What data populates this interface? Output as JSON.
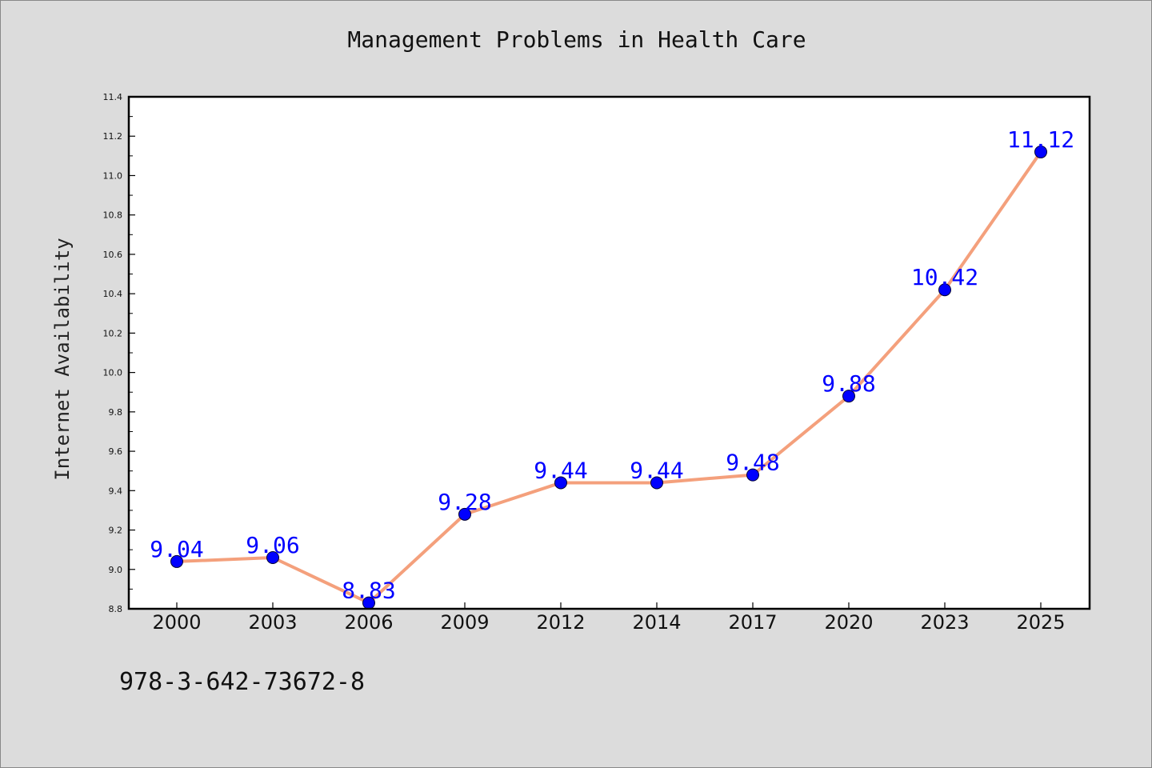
{
  "chart_data": {
    "type": "line",
    "title": "Management Problems in Health Care",
    "xlabel": "",
    "ylabel": "Internet Availability",
    "categories": [
      "2000",
      "2003",
      "2006",
      "2009",
      "2012",
      "2014",
      "2017",
      "2020",
      "2023",
      "2025"
    ],
    "series": [
      {
        "values": [
          9.04,
          9.06,
          8.83,
          9.28,
          9.44,
          9.44,
          9.48,
          9.88,
          10.42,
          11.12
        ],
        "labels": [
          "9.04",
          "9.06",
          "8.83",
          "9.28",
          "9.44",
          "9.44",
          "9.48",
          "9.88",
          "10.42",
          "11.12"
        ]
      }
    ],
    "ylim": [
      8.8,
      11.4
    ],
    "yticks": [
      "8.8",
      "9.0",
      "9.2",
      "9.4",
      "9.6",
      "9.8",
      "10.0",
      "10.2",
      "10.4",
      "10.6",
      "10.8",
      "11.0",
      "11.2",
      "11.4"
    ],
    "grid": false,
    "line_color": "#f4a07c",
    "marker_color": "#0000ff",
    "label_color": "#0000ff"
  },
  "footnote": "978-3-642-73672-8"
}
